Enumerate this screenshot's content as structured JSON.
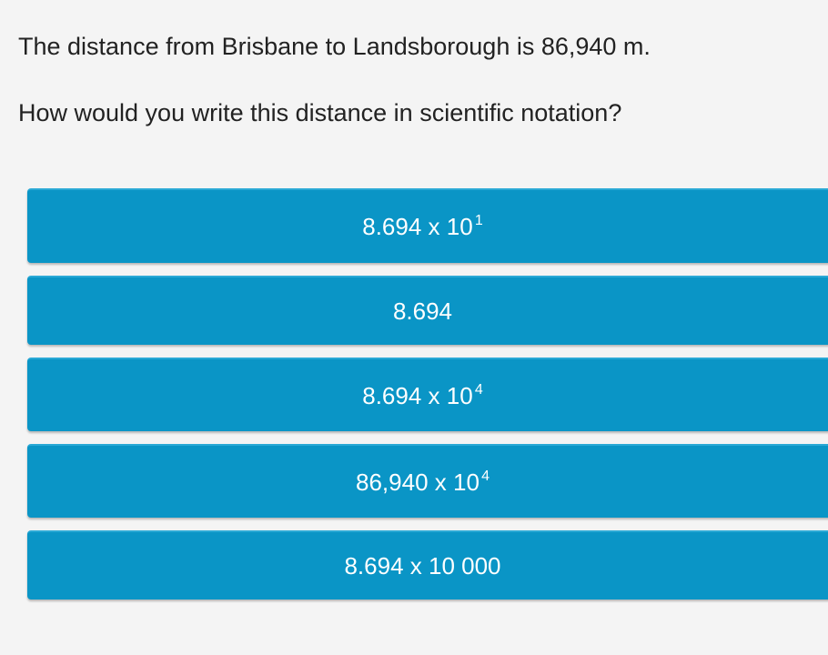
{
  "question": {
    "line1": "The distance from Brisbane to Landsborough is 86,940 m.",
    "line2": "How would you write this distance in scientific notation?"
  },
  "options": [
    {
      "base": "8.694 x 10",
      "exponent": "1"
    },
    {
      "base": "8.694",
      "exponent": ""
    },
    {
      "base": "8.694 x 10",
      "exponent": "4"
    },
    {
      "base": "86,940 x 10",
      "exponent": "4"
    },
    {
      "base": "8.694 x 10 000",
      "exponent": ""
    }
  ],
  "colors": {
    "option_background": "#0a95c6",
    "option_text": "#ffffff",
    "page_background": "#f4f4f4",
    "question_text": "#222222"
  }
}
